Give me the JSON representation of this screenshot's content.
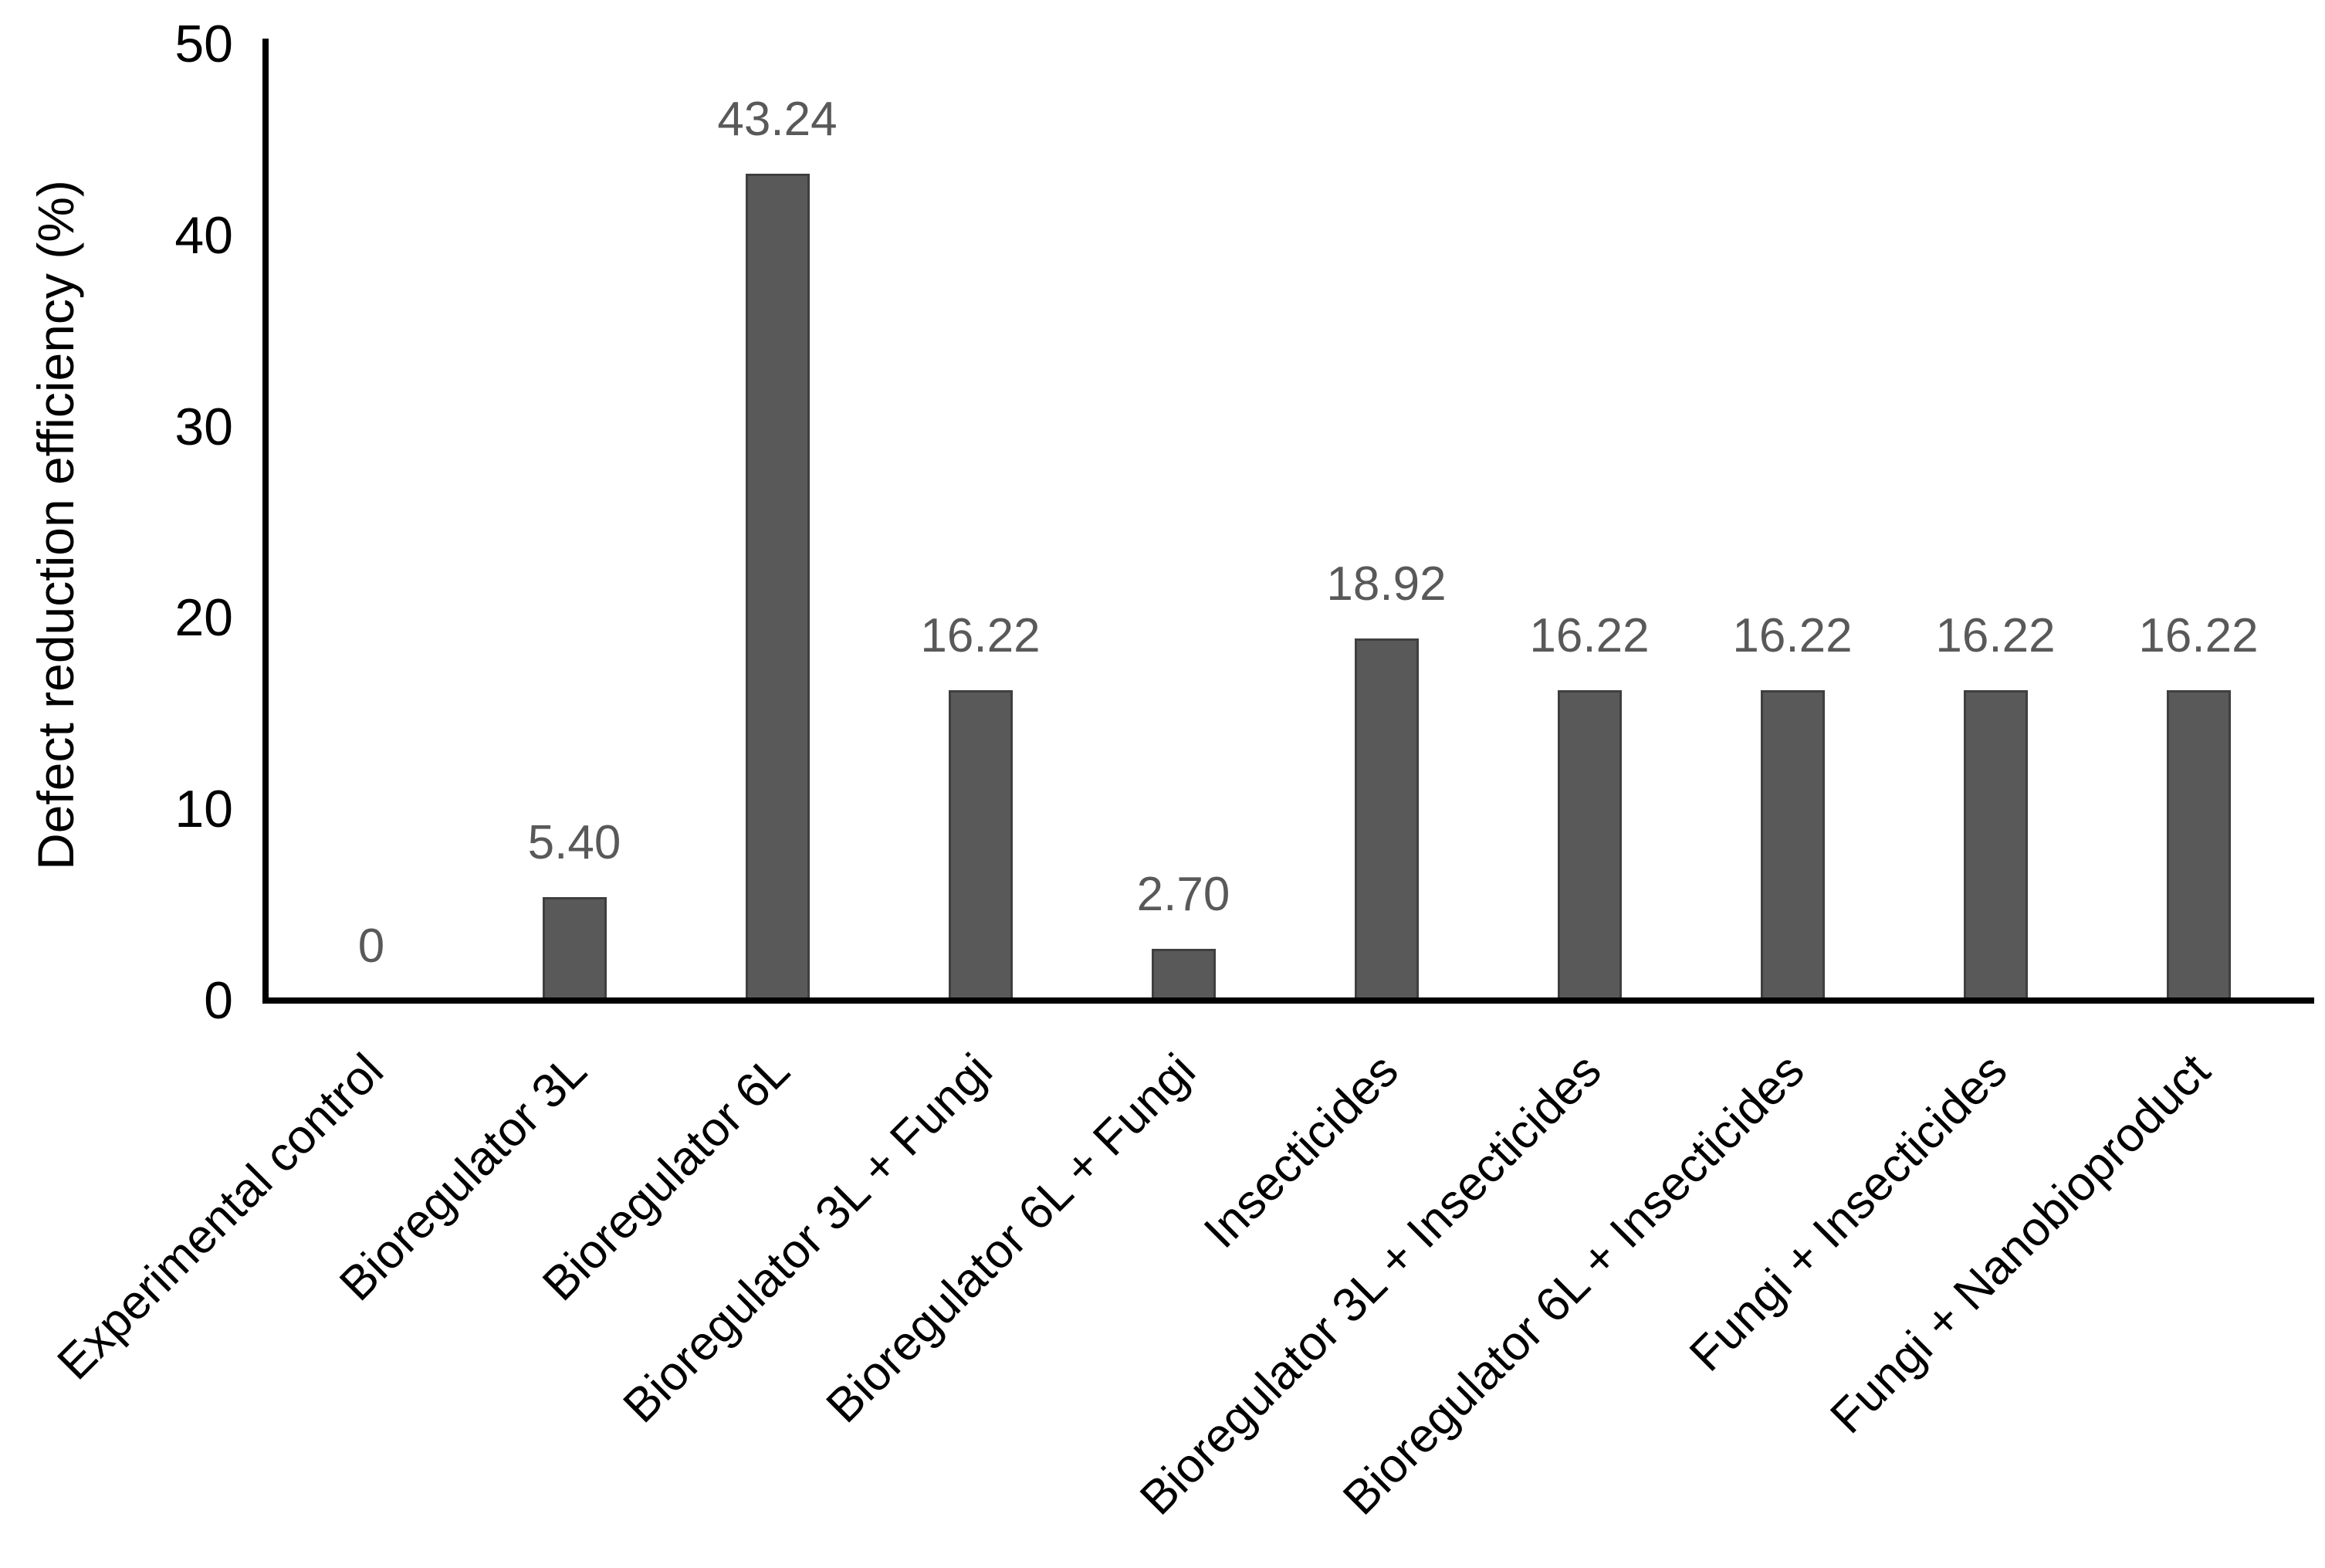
{
  "chart_data": {
    "type": "bar",
    "title": "",
    "xlabel": "",
    "ylabel": "Defect reduction efficiency (%)",
    "ylim": [
      0,
      50
    ],
    "yticks": [
      "0",
      "10",
      "20",
      "30",
      "40",
      "50"
    ],
    "grid": false,
    "legend": false,
    "bar_color": "#595959",
    "bar_border_color": "#3f3f3f",
    "value_label_color": "#595959",
    "axis_color": "#000000",
    "categories": [
      "Experimental control",
      "Bioregulator 3L",
      "Bioregulator 6L",
      "Bioregulator 3L + Fungi",
      "Bioregulator 6L + Fungi",
      "Insecticides",
      "Bioregulator 3L + Insecticides",
      "Bioregulator 6L + Insecticides",
      "Fungi + Insecticides",
      "Fungi + Nanobioproduct"
    ],
    "values": [
      0,
      5.4,
      43.24,
      16.22,
      2.7,
      18.92,
      16.22,
      16.22,
      16.22,
      16.22
    ],
    "value_labels": [
      "0",
      "5.40",
      "43.24",
      "16.22",
      "2.70",
      "18.92",
      "16.22",
      "16.22",
      "16.22",
      "16.22"
    ]
  }
}
